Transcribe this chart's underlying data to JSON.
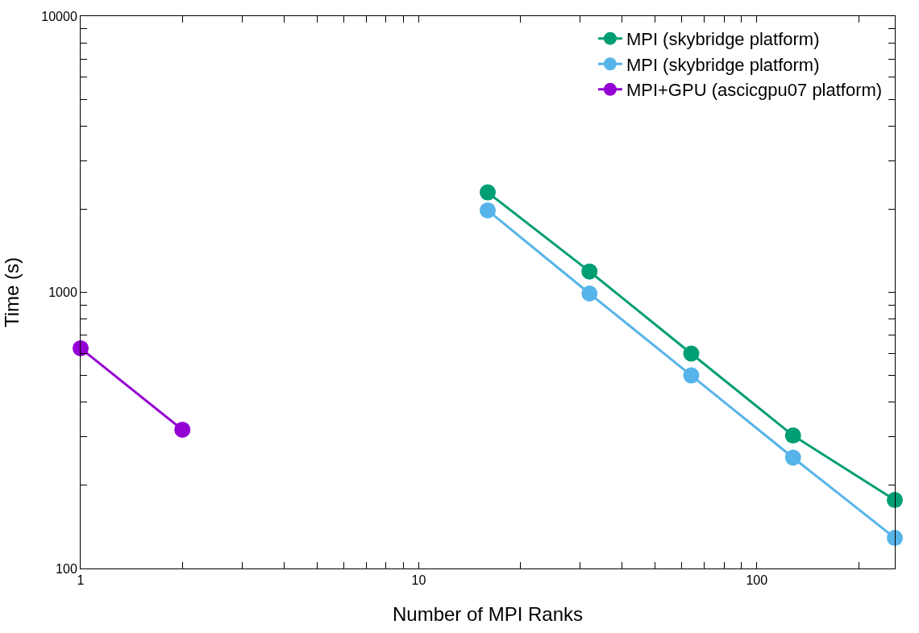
{
  "chart_data": {
    "type": "line",
    "xlabel": "Number of MPI Ranks",
    "ylabel": "Time (s)",
    "log": "xy",
    "legend": "top right",
    "marker": "circle",
    "line_style": "solid",
    "xlim": [
      1,
      256
    ],
    "ylim": [
      100,
      10000
    ],
    "xticks": [
      1,
      {
        "value": 2,
        "label": null
      },
      {
        "value": 3,
        "label": null
      },
      {
        "value": 4,
        "label": null
      },
      {
        "value": 5,
        "label": null
      },
      {
        "value": 6,
        "label": null
      },
      {
        "value": 7,
        "label": null
      },
      {
        "value": 8,
        "label": null
      },
      {
        "value": 9,
        "label": null
      },
      10,
      {
        "value": 20,
        "label": null
      },
      {
        "value": 30,
        "label": null
      },
      {
        "value": 40,
        "label": null
      },
      {
        "value": 50,
        "label": null
      },
      {
        "value": 60,
        "label": null
      },
      {
        "value": 70,
        "label": null
      },
      {
        "value": 80,
        "label": null
      },
      {
        "value": 90,
        "label": null
      },
      100,
      {
        "value": 200,
        "label": null
      }
    ],
    "yticks": [
      100,
      {
        "value": 200,
        "label": null
      },
      {
        "value": 300,
        "label": null
      },
      {
        "value": 400,
        "label": null
      },
      {
        "value": 500,
        "label": null
      },
      {
        "value": 600,
        "label": null
      },
      {
        "value": 700,
        "label": null
      },
      {
        "value": 800,
        "label": null
      },
      {
        "value": 900,
        "label": null
      },
      1000,
      {
        "value": 2000,
        "label": null
      },
      {
        "value": 3000,
        "label": null
      },
      {
        "value": 4000,
        "label": null
      },
      {
        "value": 5000,
        "label": null
      },
      {
        "value": 6000,
        "label": null
      },
      {
        "value": 7000,
        "label": null
      },
      {
        "value": 8000,
        "label": null
      },
      {
        "value": 9000,
        "label": null
      },
      10000
    ],
    "series": [
      {
        "name": "MPI (skybridge platform)",
        "color": "#009e73",
        "x": [
          16,
          32,
          64,
          128,
          256
        ],
        "values": [
          2300,
          1190,
          600,
          303,
          177
        ]
      },
      {
        "name": "MPI (skybridge platform)",
        "color": "#56b4e9",
        "x": [
          16,
          32,
          64,
          128,
          256
        ],
        "values": [
          1980,
          990,
          500,
          252,
          129
        ]
      },
      {
        "name": "MPI+GPU (ascicgpu07 platform)",
        "color": "#9400d3",
        "x": [
          1,
          2
        ],
        "values": [
          627,
          318
        ]
      }
    ]
  }
}
